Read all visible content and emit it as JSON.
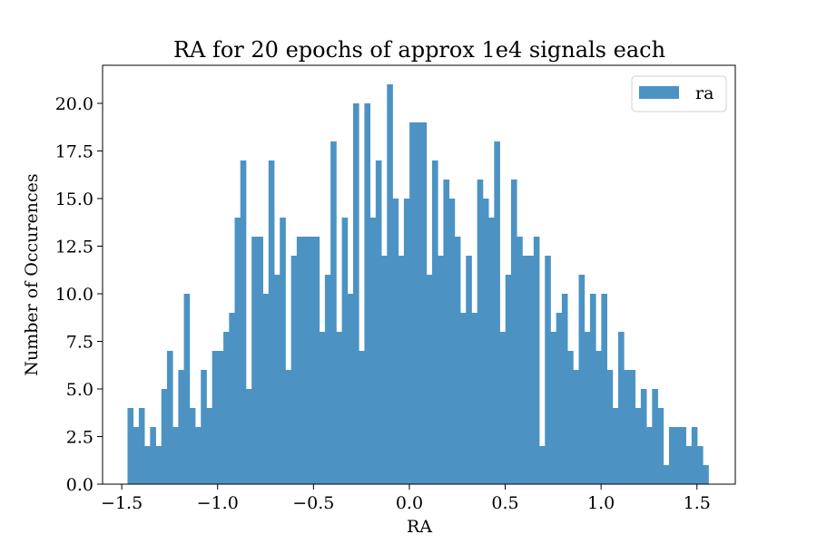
{
  "chart_data": {
    "type": "bar",
    "title": "RA for 20 epochs of approx 1e4 signals each",
    "xlabel": "RA",
    "ylabel": "Number of Occurences",
    "xlim": [
      -1.6,
      1.7
    ],
    "ylim": [
      0,
      22
    ],
    "bin_range": [
      -1.47,
      1.56
    ],
    "xticks": [
      -1.5,
      -1.0,
      -0.5,
      0.0,
      0.5,
      1.0,
      1.5
    ],
    "xtick_labels": [
      "−1.5",
      "−1.0",
      "−0.5",
      "0.0",
      "0.5",
      "1.0",
      "1.5"
    ],
    "yticks": [
      0,
      2.5,
      5,
      7.5,
      10,
      12.5,
      15,
      17.5,
      20
    ],
    "ytick_labels": [
      "0.0",
      "2.5",
      "5.0",
      "7.5",
      "10.0",
      "12.5",
      "15.0",
      "17.5",
      "20.0"
    ],
    "grid": false,
    "legend_position": "top-right",
    "color": "#4c93c4",
    "series": [
      {
        "name": "ra",
        "values": [
          4,
          3,
          4,
          2,
          3,
          2,
          5,
          7,
          3,
          6,
          10,
          4,
          3,
          6,
          4,
          7,
          7,
          8,
          9,
          14,
          17,
          5,
          13,
          13,
          10,
          17,
          11,
          14,
          6,
          12,
          13,
          13,
          13,
          13,
          8,
          11,
          18,
          8,
          14,
          10,
          20,
          7,
          20,
          14,
          17,
          12,
          21,
          15,
          12,
          15,
          19,
          19,
          19,
          11,
          17,
          12,
          16,
          15,
          13,
          9,
          12,
          9,
          16,
          15,
          14,
          18,
          8,
          11,
          16,
          13,
          12,
          12,
          13,
          2,
          12,
          8,
          9,
          10,
          7,
          6,
          11,
          8,
          10,
          7,
          10,
          6,
          4,
          8,
          6,
          6,
          4,
          5,
          3,
          5,
          4,
          1,
          3,
          3,
          3,
          2,
          3,
          2,
          1
        ]
      }
    ]
  }
}
